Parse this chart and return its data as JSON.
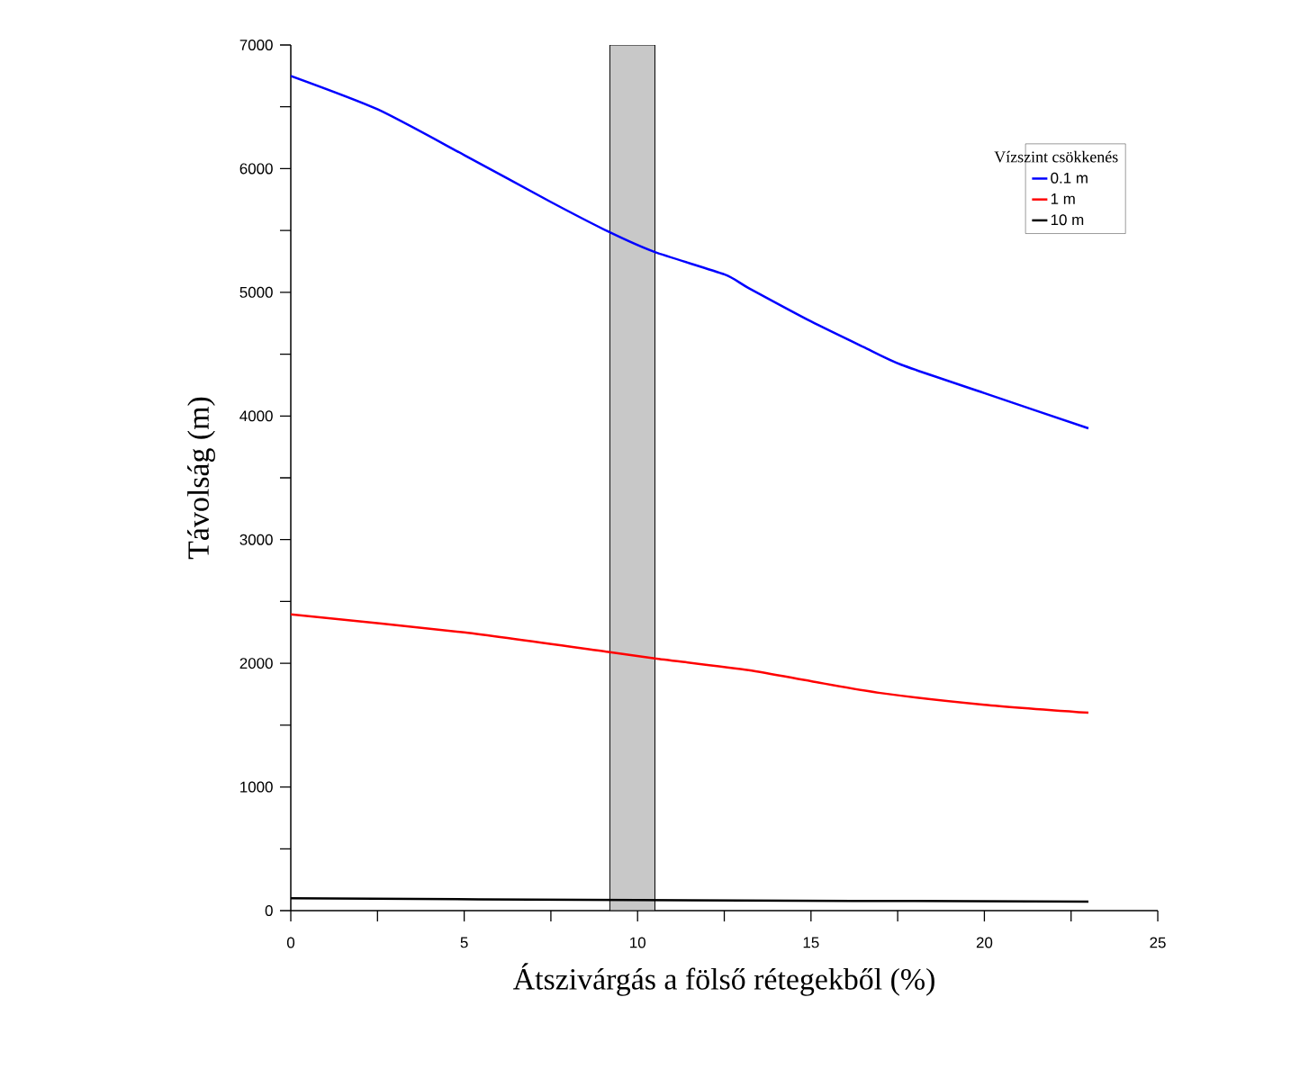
{
  "chart_data": {
    "type": "line",
    "xlabel": "Átszivárgás a fölső rétegekből  (%)",
    "ylabel": "Távolság (m)",
    "legend_title": "Vízszint csökkenés",
    "xlim": [
      0,
      25
    ],
    "xticks": [
      0,
      {
        "value": 2.5,
        "label": null
      },
      5,
      {
        "value": 7.5,
        "label": null
      },
      10,
      {
        "value": 12.5,
        "label": null
      },
      15,
      {
        "value": 17.5,
        "label": null
      },
      20,
      {
        "value": 22.5,
        "label": null
      },
      25
    ],
    "ylim": [
      0,
      7000
    ],
    "yticks": [
      0,
      {
        "value": 500,
        "label": null
      },
      1000,
      {
        "value": 1500,
        "label": null
      },
      2000,
      {
        "value": 2500,
        "label": null
      },
      3000,
      {
        "value": 3500,
        "label": null
      },
      4000,
      {
        "value": 4500,
        "label": null
      },
      5000,
      {
        "value": 5500,
        "label": null
      },
      6000,
      {
        "value": 6500,
        "label": null
      },
      7000
    ],
    "grid": false,
    "legend": "top right",
    "marker": "none",
    "line_style": "solid",
    "bands": [
      {
        "axis": "x",
        "from": 9.2,
        "to": 10.5,
        "color": "#c8c8c8"
      }
    ],
    "series": [
      {
        "name": "0.1 m",
        "color": "#0000ff",
        "x": [
          0,
          2.5,
          5,
          7.5,
          9.2,
          10.5,
          12.5,
          13.2,
          15,
          16.5,
          17.6,
          20,
          23
        ],
        "values": [
          6750,
          6480,
          6110,
          5730,
          5485,
          5325,
          5145,
          5035,
          4765,
          4560,
          4415,
          4185,
          3900
        ]
      },
      {
        "name": "1 m",
        "color": "#ff0000",
        "x": [
          0,
          5,
          9.2,
          10.5,
          13.2,
          15,
          17,
          20,
          23
        ],
        "values": [
          2395,
          2250,
          2090,
          2040,
          1945,
          1855,
          1760,
          1665,
          1600
        ]
      },
      {
        "name": "10 m",
        "color": "#000000",
        "x": [
          0,
          10,
          23
        ],
        "values": [
          100,
          85,
          73
        ]
      }
    ]
  }
}
